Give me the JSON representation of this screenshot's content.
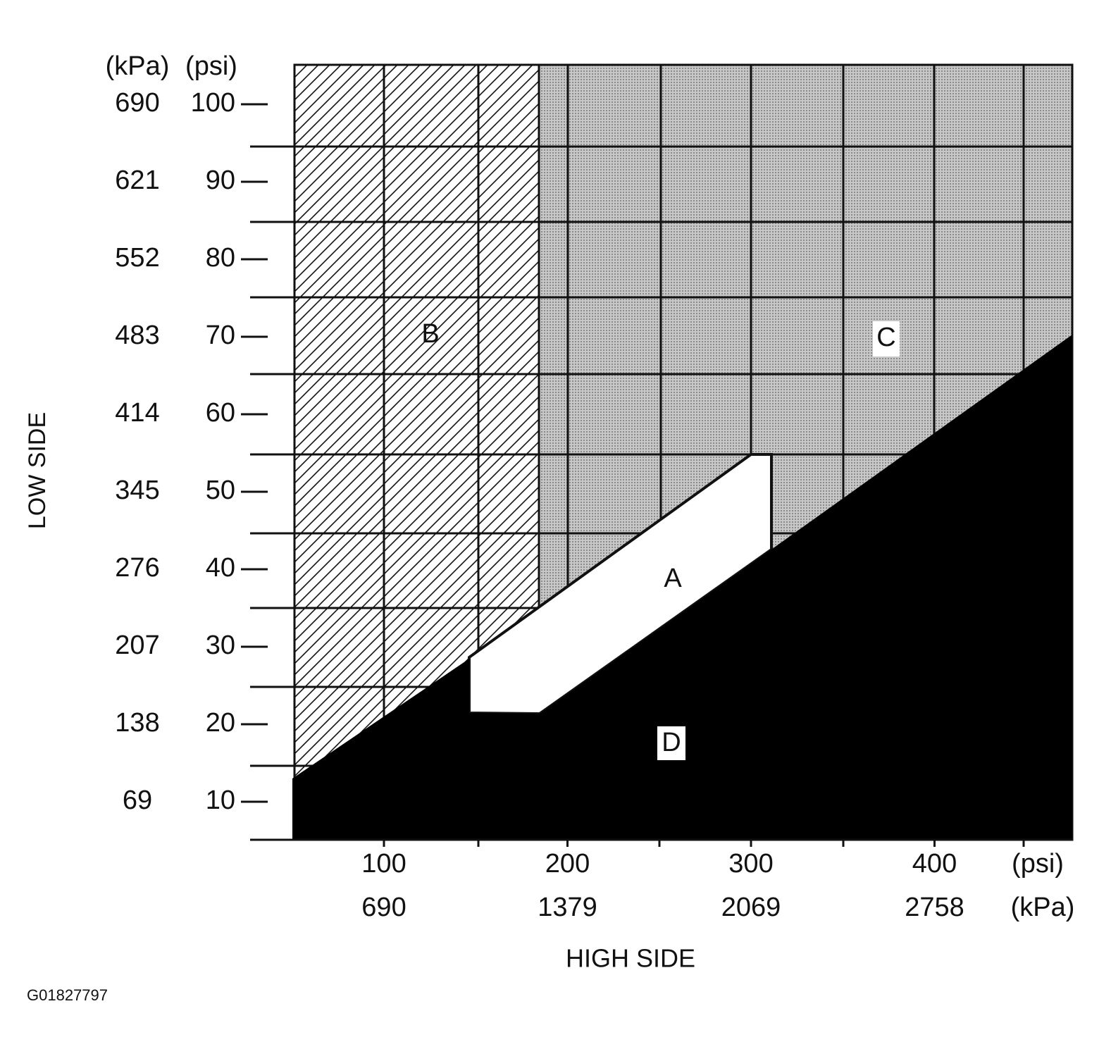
{
  "y_axis": {
    "title": "LOW SIDE",
    "unit_headers": [
      "(kPa)",
      "(psi)"
    ],
    "ticks": [
      {
        "kpa": 690,
        "psi": 100
      },
      {
        "kpa": 621,
        "psi": 90
      },
      {
        "kpa": 552,
        "psi": 80
      },
      {
        "kpa": 483,
        "psi": 70
      },
      {
        "kpa": 414,
        "psi": 60
      },
      {
        "kpa": 345,
        "psi": 50
      },
      {
        "kpa": 276,
        "psi": 40
      },
      {
        "kpa": 207,
        "psi": 30
      },
      {
        "kpa": 138,
        "psi": 20
      },
      {
        "kpa": 69,
        "psi": 10
      }
    ]
  },
  "x_axis": {
    "title": "HIGH SIDE",
    "unit_labels": [
      "(psi)",
      "(kPa)"
    ],
    "ticks": [
      {
        "psi": 100,
        "kpa": 690
      },
      {
        "psi": 200,
        "kpa": 1379
      },
      {
        "psi": 300,
        "kpa": 2069
      },
      {
        "psi": 400,
        "kpa": 2758
      }
    ]
  },
  "regions": [
    "A",
    "B",
    "C",
    "D"
  ],
  "figure_id": "G01827797"
}
